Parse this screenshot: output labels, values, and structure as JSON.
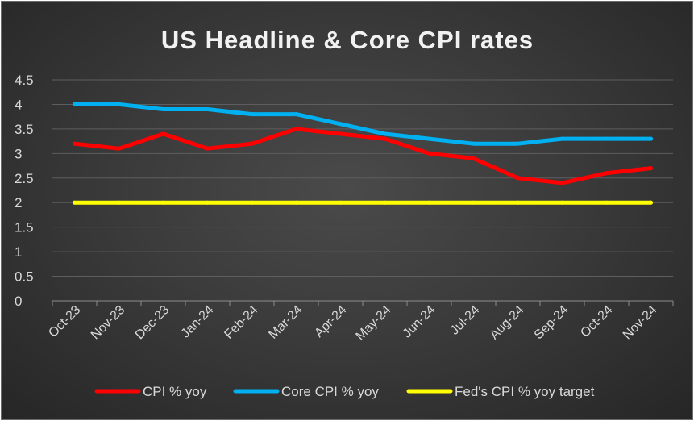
{
  "chart_data": {
    "type": "line",
    "title": "US Headline & Core CPI rates",
    "xlabel": "",
    "ylabel": "",
    "categories": [
      "Oct-23",
      "Nov-23",
      "Dec-23",
      "Jan-24",
      "Feb-24",
      "Mar-24",
      "Apr-24",
      "May-24",
      "Jun-24",
      "Jul-24",
      "Aug-24",
      "Sep-24",
      "Oct-24",
      "Nov-24"
    ],
    "yticks": [
      "0",
      "0.5",
      "1",
      "1.5",
      "2",
      "2.5",
      "3",
      "3.5",
      "4",
      "4.5"
    ],
    "ylim": [
      0,
      4.5
    ],
    "grid": true,
    "legend_position": "bottom",
    "series": [
      {
        "name": "CPI % yoy",
        "color": "#ff0000",
        "values": [
          3.2,
          3.1,
          3.4,
          3.1,
          3.2,
          3.5,
          3.4,
          3.3,
          3.0,
          2.9,
          2.5,
          2.4,
          2.6,
          2.7
        ]
      },
      {
        "name": "Core CPI % yoy",
        "color": "#00b0f0",
        "values": [
          4.0,
          4.0,
          3.9,
          3.9,
          3.8,
          3.8,
          3.6,
          3.4,
          3.3,
          3.2,
          3.2,
          3.3,
          3.3,
          3.3
        ]
      },
      {
        "name": "Fed's CPI % yoy target",
        "color": "#ffff00",
        "values": [
          2,
          2,
          2,
          2,
          2,
          2,
          2,
          2,
          2,
          2,
          2,
          2,
          2,
          2
        ]
      }
    ]
  }
}
